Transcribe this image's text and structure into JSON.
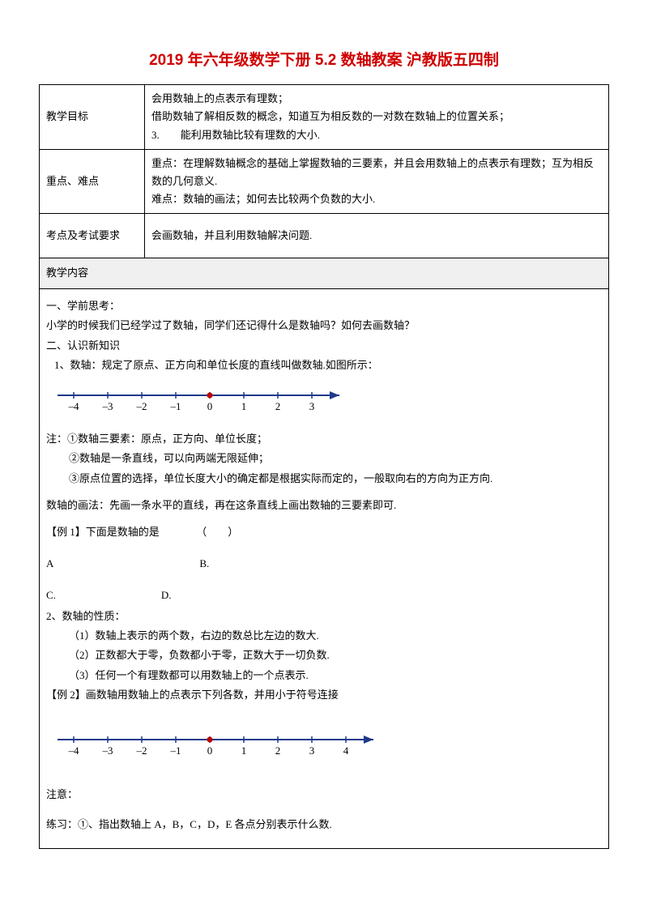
{
  "title": "2019 年六年级数学下册 5.2 数轴教案 沪教版五四制",
  "meta": {
    "rows": [
      {
        "label": "教学目标",
        "value": "会用数轴上的点表示有理数；\n借助数轴了解相反数的概念，知道互为相反数的一对数在数轴上的位置关系；\n3.　　能利用数轴比较有理数的大小."
      },
      {
        "label": "重点、难点",
        "value": "重点：在理解数轴概念的基础上掌握数轴的三要素，并且会用数轴上的点表示有理数；互为相反数的几何意义.\n难点：数轴的画法；如何去比较两个负数的大小."
      },
      {
        "label": "考点及考试要求",
        "value": "会画数轴，并且利用数轴解决问题."
      }
    ]
  },
  "section_header": "教学内容",
  "body": {
    "p1": "一、学前思考：",
    "p2": "小学的时候我们已经学过了数轴，同学们还记得什么是数轴吗？如何去画数轴？",
    "p3": "二、认识新知识",
    "p4": "1、数轴：规定了原点、正方向和单位长度的直线叫做数轴.如图所示：",
    "nl1": {
      "ticks": [
        "–4",
        "–3",
        "–2",
        "–1",
        "0",
        "1",
        "2",
        "3"
      ],
      "origin_index": 4,
      "color_line": "#1e3a8a",
      "color_origin": "#c00000"
    },
    "p5": "注：①数轴三要素：原点，正方向、单位长度；",
    "p6": "②数轴是一条直线，可以向两端无限延伸；",
    "p7": "③原点位置的选择，单位长度大小的确定都是根据实际而定的，一般取向右的方向为正方向.",
    "p8": "数轴的画法：先画一条水平的直线，再在这条直线上画出数轴的三要素即可.",
    "p9": "【例 1】下面是数轴的是　　　　（　　）",
    "p10a": "A",
    "p10b": "B.",
    "p11a": "C.",
    "p11b": "D.",
    "p12": "2、数轴的性质：",
    "p13": "（1）数轴上表示的两个数，右边的数总比左边的数大.",
    "p14": "（2）正数都大于零，负数都小于零，正数大于一切负数.",
    "p15": "（3）任何一个有理数都可以用数轴上的一个点表示.",
    "p16": "【例 2】画数轴用数轴上的点表示下列各数，并用小于符号连接",
    "nl2": {
      "ticks": [
        "–4",
        "–3",
        "–2",
        "–1",
        "0",
        "1",
        "2",
        "3",
        "4"
      ],
      "origin_index": 4,
      "color_line": "#1e3a8a",
      "color_origin": "#c00000"
    },
    "p17": "注意：",
    "p18": "练习：①、指出数轴上 A，B，C，D，E 各点分别表示什么数."
  }
}
